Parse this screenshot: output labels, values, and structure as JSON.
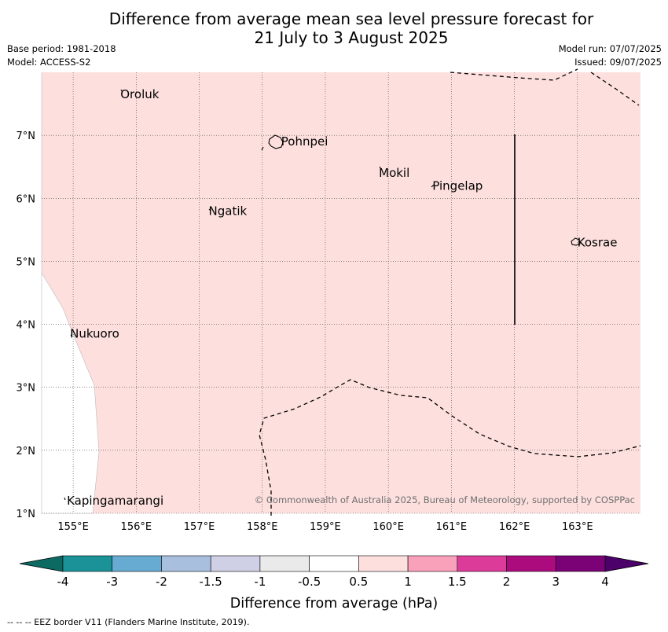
{
  "title": {
    "line1": "Difference from average mean sea level pressure forecast for",
    "line2": "21 July to 3 August 2025"
  },
  "meta_left": {
    "base_period": "Base period: 1981-2018",
    "model": "Model: ACCESS-S2"
  },
  "meta_right": {
    "model_run": "Model run: 07/07/2025",
    "issued": "Issued: 09/07/2025"
  },
  "map": {
    "lon_range": [
      154.5,
      164.0
    ],
    "lat_range": [
      1.0,
      8.0
    ],
    "fill_color": "#fde0de",
    "lon_ticks": [
      155,
      156,
      157,
      158,
      159,
      160,
      161,
      162,
      163
    ],
    "lon_tick_labels": [
      "155°E",
      "156°E",
      "157°E",
      "158°E",
      "159°E",
      "160°E",
      "161°E",
      "162°E",
      "163°E"
    ],
    "lat_ticks": [
      1,
      2,
      3,
      4,
      5,
      6,
      7
    ],
    "lat_tick_labels": [
      "1°N",
      "2°N",
      "3°N",
      "4°N",
      "5°N",
      "6°N",
      "7°N"
    ],
    "places": [
      {
        "name": "Oroluk",
        "lon": 155.75,
        "lat": 7.65
      },
      {
        "name": "Pohnpei",
        "lon": 158.3,
        "lat": 6.9
      },
      {
        "name": "Mokil",
        "lon": 159.85,
        "lat": 6.4
      },
      {
        "name": "Pingelap",
        "lon": 160.7,
        "lat": 6.2
      },
      {
        "name": "Ngatik",
        "lon": 157.15,
        "lat": 5.8
      },
      {
        "name": "Kosrae",
        "lon": 163.0,
        "lat": 5.3
      },
      {
        "name": "Nukuoro",
        "lon": 154.95,
        "lat": 3.85
      },
      {
        "name": "Kapingamarangi",
        "lon": 154.9,
        "lat": 1.2
      }
    ],
    "copyright": "© Commonwealth of Australia 2025, Bureau of Meteorology, supported by COSPPac"
  },
  "colorbar": {
    "label": "Difference from average (hPa)",
    "colors": [
      "#1a9297",
      "#67abd2",
      "#a8bfde",
      "#cfcfe6",
      "#eaeaea",
      "#ffffff",
      "#fde0de",
      "#f9a1bb",
      "#dc3b9a",
      "#ac0b7d",
      "#7a0176"
    ],
    "under_color": "#0b6b63",
    "over_color": "#4c006a",
    "tick_labels": [
      "-4",
      "-3",
      "-2",
      "-1.5",
      "-1",
      "-0.5",
      "0.5",
      "1",
      "1.5",
      "2",
      "3",
      "4"
    ]
  },
  "footer": "-- -- -- EEZ border V11 (Flanders Marine Institute, 2019)."
}
